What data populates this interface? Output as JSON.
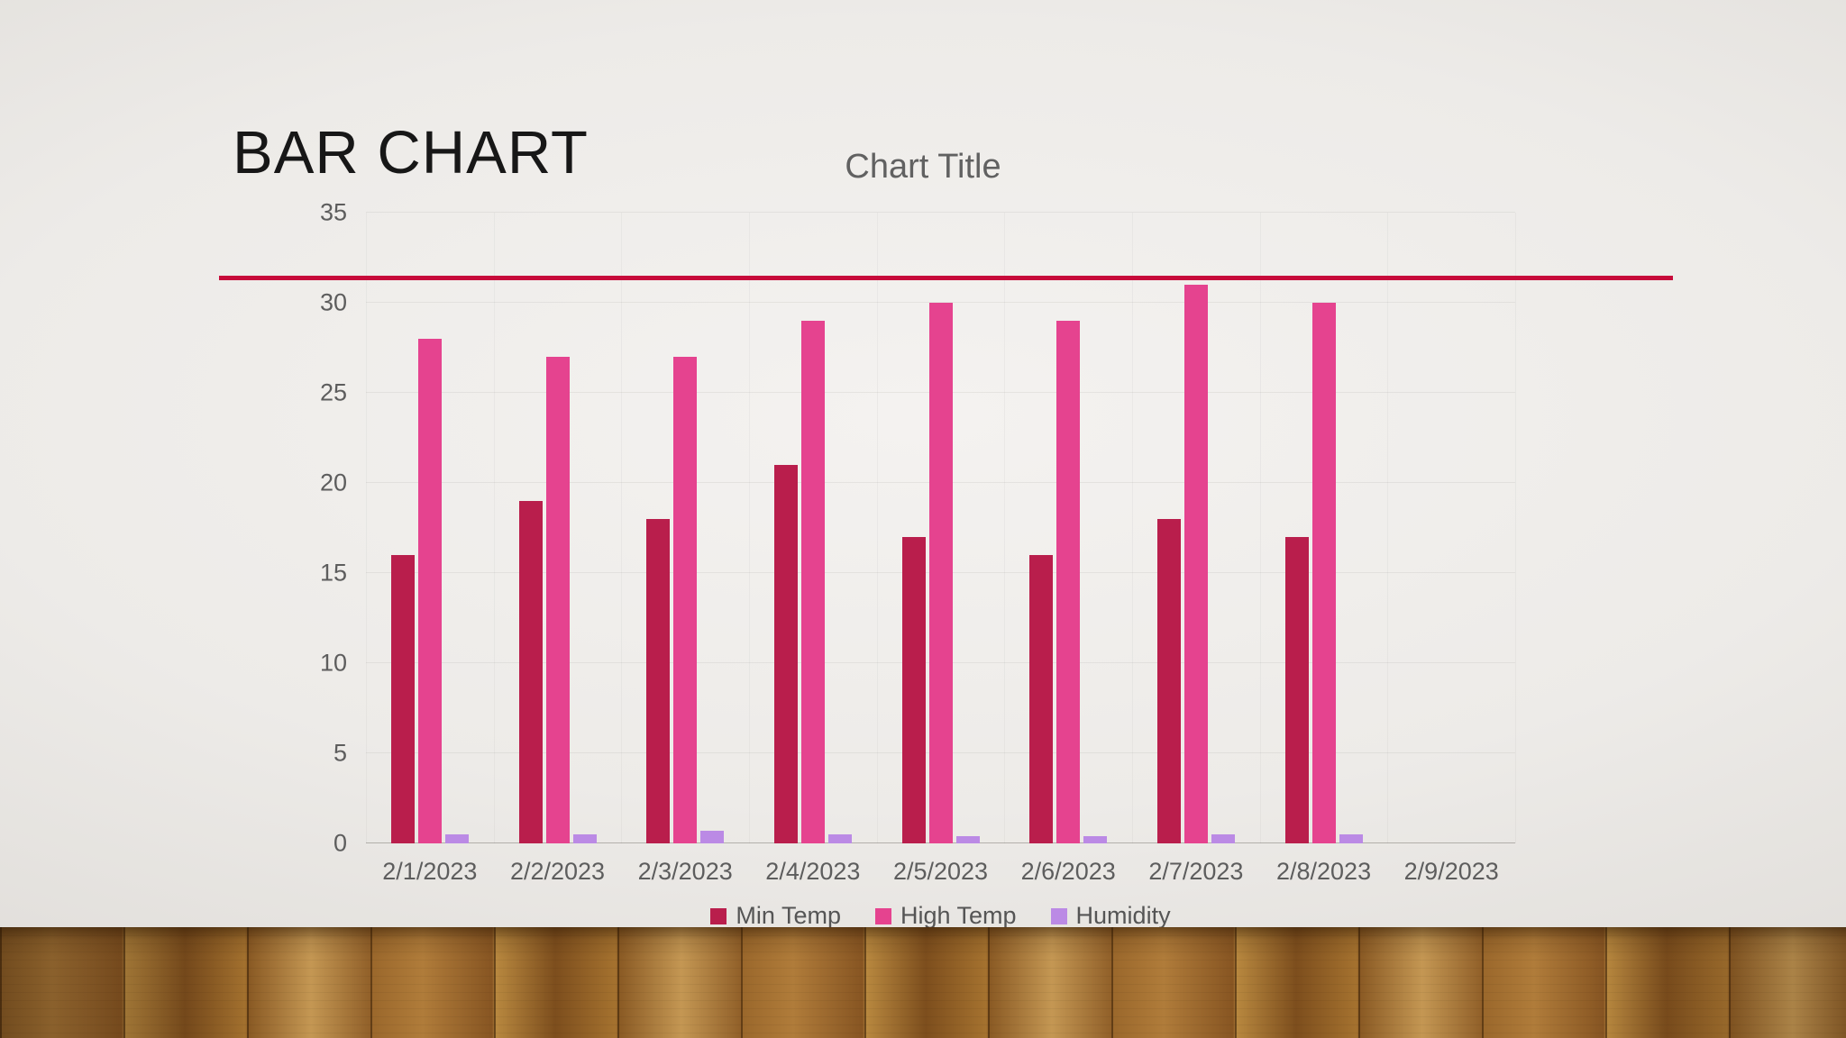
{
  "slide": {
    "title": "BAR CHART"
  },
  "chart_data": {
    "type": "bar",
    "title": "Chart Title",
    "categories": [
      "2/1/2023",
      "2/2/2023",
      "2/3/2023",
      "2/4/2023",
      "2/5/2023",
      "2/6/2023",
      "2/7/2023",
      "2/8/2023",
      "2/9/2023"
    ],
    "series": [
      {
        "name": "Min Temp",
        "color": "#b91e4c",
        "values": [
          16,
          19,
          18,
          21,
          17,
          16,
          18,
          17,
          null
        ]
      },
      {
        "name": "High Temp",
        "color": "#e5438f",
        "values": [
          28,
          27,
          27,
          29,
          30,
          29,
          31,
          30,
          null
        ]
      },
      {
        "name": "Humidity",
        "color": "#bb8ae5",
        "values": [
          0.5,
          0.5,
          0.7,
          0.5,
          0.4,
          0.4,
          0.5,
          0.5,
          null
        ]
      }
    ],
    "ylim": [
      0,
      35
    ],
    "yticks": [
      0,
      5,
      10,
      15,
      20,
      25,
      30,
      35
    ],
    "xlabel": "",
    "ylabel": "",
    "grid": true,
    "legend_position": "bottom"
  },
  "decor": {
    "accent_line_color": "#c70a3a",
    "min_temp_color": "#b91e4c",
    "high_temp_color": "#e5438f",
    "humidity_color": "#bb8ae5"
  }
}
